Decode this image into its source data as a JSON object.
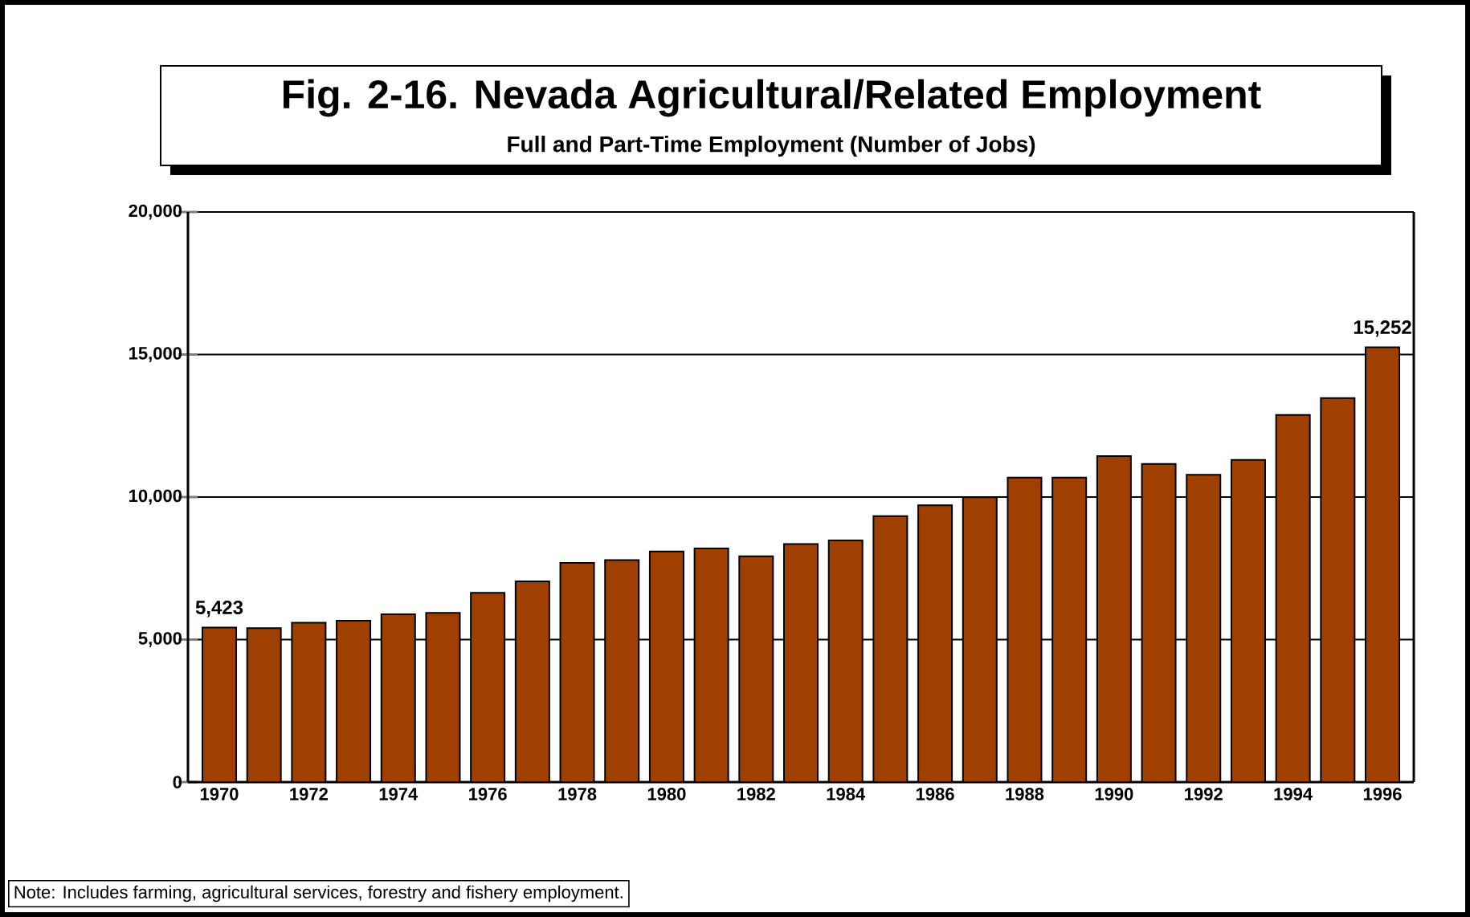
{
  "chart_data": {
    "type": "bar",
    "title": "Fig. 2-16. Nevada Agricultural/Related Employment",
    "subtitle": "Full and Part-Time Employment (Number of Jobs)",
    "categories": [
      "1970",
      null,
      "1972",
      null,
      "1974",
      null,
      "1976",
      null,
      "1978",
      null,
      "1980",
      null,
      "1982",
      null,
      "1984",
      null,
      "1986",
      null,
      "1988",
      null,
      "1990",
      null,
      "1992",
      null,
      "1994",
      null,
      "1996"
    ],
    "values": [
      5423,
      5400,
      5590,
      5660,
      5890,
      5940,
      6640,
      7040,
      7690,
      7790,
      8090,
      8200,
      7920,
      8350,
      8480,
      9330,
      9710,
      9990,
      10680,
      10680,
      11440,
      11160,
      10780,
      11300,
      12880,
      13470,
      15252
    ],
    "value_labels": [
      "5,423",
      null,
      null,
      null,
      null,
      null,
      null,
      null,
      null,
      null,
      null,
      null,
      null,
      null,
      null,
      null,
      null,
      null,
      null,
      null,
      null,
      null,
      null,
      null,
      null,
      null,
      "15,252"
    ],
    "color": "#a04000",
    "ylim": [
      0,
      20000
    ],
    "yticks": [
      {
        "value": 0,
        "label": "0"
      },
      {
        "value": 5000,
        "label": "5,000"
      },
      {
        "value": 10000,
        "label": "10,000"
      },
      {
        "value": 15000,
        "label": "15,000"
      },
      {
        "value": 20000,
        "label": "20,000"
      }
    ],
    "grid": "y",
    "annotations": [
      "Note: Includes farming, agricultural services, forestry and fishery employment."
    ]
  }
}
